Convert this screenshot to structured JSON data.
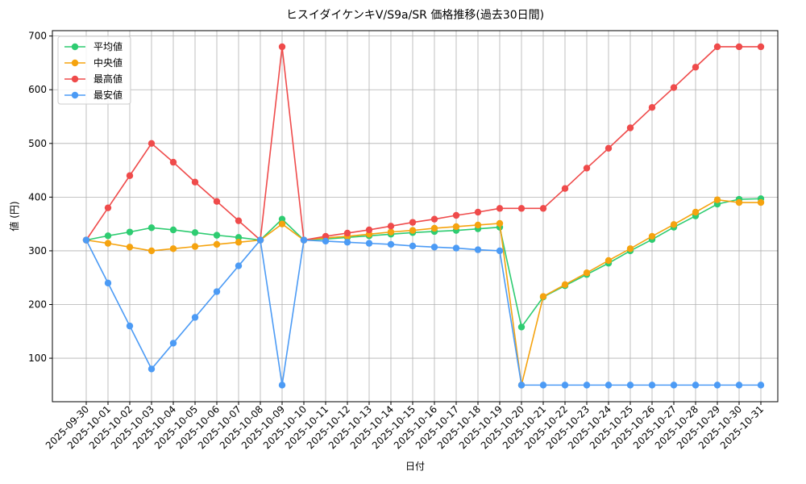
{
  "chart_data": {
    "type": "line",
    "title": "ヒスイダイケンキV/S9a/SR 価格推移(過去30日間)",
    "x_label": "日付",
    "y_label": "値 (円)",
    "categories": [
      "2025-09-30",
      "2025-10-01",
      "2025-10-02",
      "2025-10-03",
      "2025-10-04",
      "2025-10-05",
      "2025-10-06",
      "2025-10-07",
      "2025-10-08",
      "2025-10-09",
      "2025-10-10",
      "2025-10-11",
      "2025-10-12",
      "2025-10-13",
      "2025-10-14",
      "2025-10-15",
      "2025-10-16",
      "2025-10-17",
      "2025-10-18",
      "2025-10-19",
      "2025-10-20",
      "2025-10-21",
      "2025-10-22",
      "2025-10-23",
      "2025-10-24",
      "2025-10-25",
      "2025-10-26",
      "2025-10-27",
      "2025-10-28",
      "2025-10-29",
      "2025-10-30",
      "2025-10-31"
    ],
    "series": [
      {
        "name": "平均値",
        "color": "#2ecc71",
        "values": [
          320,
          328,
          335,
          343,
          339,
          334,
          329,
          325,
          320,
          359,
          320,
          322,
          325,
          328,
          331,
          334,
          336,
          338,
          341,
          344,
          158,
          214,
          235,
          256,
          277,
          300,
          321,
          344,
          365,
          387,
          396,
          397
        ]
      },
      {
        "name": "中央値",
        "color": "#f5a30f",
        "values": [
          320,
          314,
          307,
          300,
          304,
          308,
          312,
          316,
          320,
          350,
          320,
          324,
          327,
          331,
          335,
          338,
          342,
          345,
          348,
          351,
          50,
          215,
          237,
          259,
          282,
          304,
          327,
          349,
          372,
          395,
          390,
          390
        ]
      },
      {
        "name": "最高値",
        "color": "#ef4b4b",
        "values": [
          320,
          380,
          440,
          500,
          465,
          428,
          392,
          356,
          320,
          680,
          320,
          327,
          333,
          339,
          346,
          353,
          359,
          366,
          372,
          379,
          379,
          379,
          416,
          454,
          491,
          529,
          567,
          604,
          642,
          680,
          680,
          680
        ]
      },
      {
        "name": "最安値",
        "color": "#4c9bf5",
        "values": [
          320,
          240,
          160,
          80,
          128,
          176,
          224,
          272,
          320,
          50,
          320,
          318,
          316,
          314,
          312,
          309,
          307,
          305,
          302,
          300,
          50,
          50,
          50,
          50,
          50,
          50,
          50,
          50,
          50,
          50,
          50,
          50
        ]
      }
    ],
    "ylim": [
      19,
      710
    ],
    "yticks": [
      100,
      200,
      300,
      400,
      500,
      600,
      700
    ],
    "grid": true,
    "legend": "upper left"
  }
}
